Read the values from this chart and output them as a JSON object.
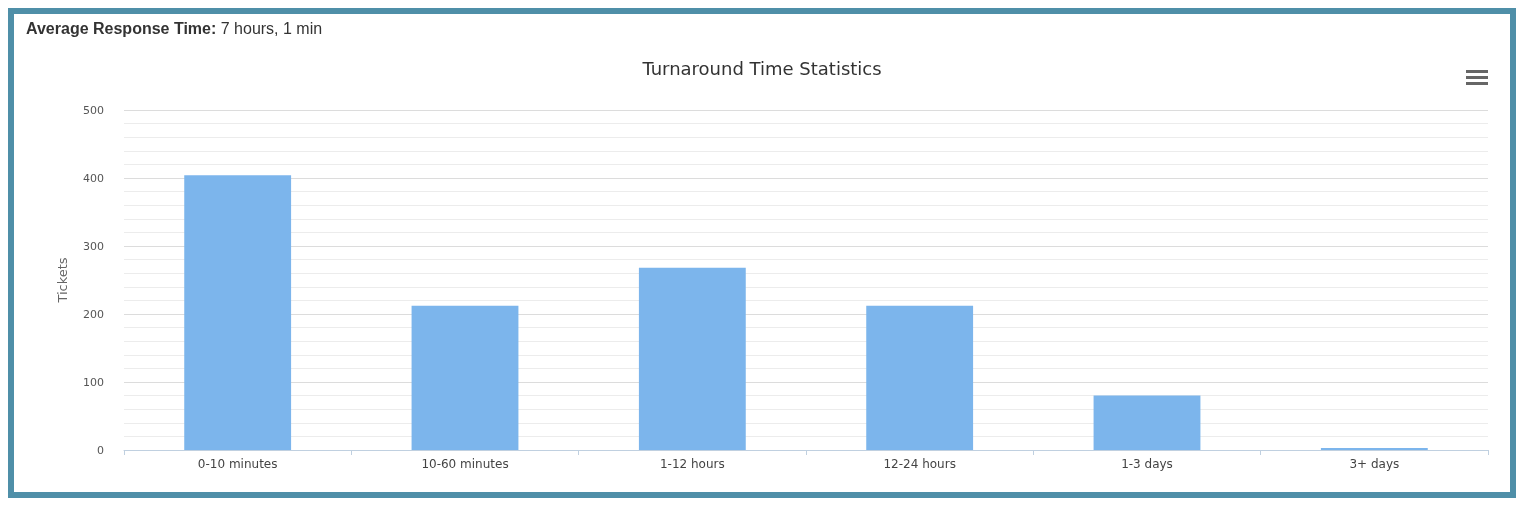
{
  "chart_data": {
    "type": "bar",
    "title": "Turnaround Time Statistics",
    "ylabel": "Tickets",
    "annotations": [
      "Average Response Time: 7 hours, 1 min"
    ],
    "categories": [
      "0-10 minutes",
      "10-60 minutes",
      "1-12 hours",
      "12-24 hours",
      "1-3 days",
      "3+ days"
    ],
    "values": [
      404,
      212,
      268,
      212,
      80,
      3
    ],
    "color": "#7cb5ec",
    "ylim": [
      0,
      500
    ],
    "yticks": [
      0,
      100,
      200,
      300,
      400,
      500
    ],
    "grid": "y"
  }
}
